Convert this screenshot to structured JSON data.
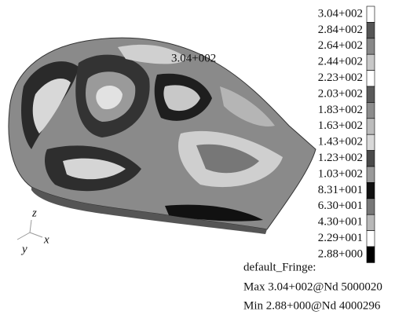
{
  "annotation": "3.04+002",
  "legend": {
    "labels": [
      "3.04+002",
      "2.84+002",
      "2.64+002",
      "2.44+002",
      "2.23+002",
      "2.03+002",
      "1.83+002",
      "1.63+002",
      "1.43+002",
      "1.23+002",
      "1.03+002",
      "8.31+001",
      "6.30+001",
      "4.30+001",
      "2.29+001",
      "2.88+000"
    ]
  },
  "fringe": {
    "title": "default_Fringe:",
    "max": "Max 3.04+002@Nd 5000020",
    "min": "Min 2.88+000@Nd 4000296"
  },
  "triad": {
    "z": "z",
    "x": "x",
    "y": "y"
  }
}
